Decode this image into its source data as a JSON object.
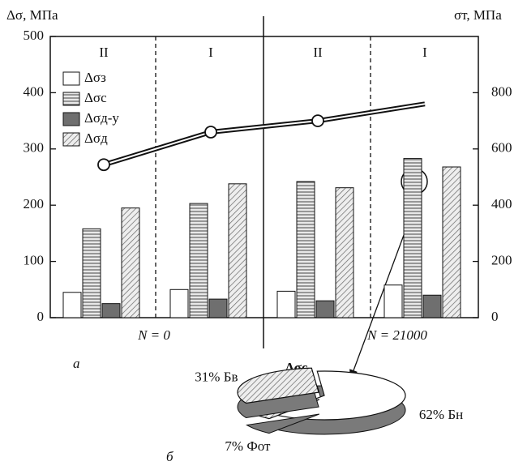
{
  "chart_data": [
    {
      "type": "bar",
      "y_label": "Δσ, МПа",
      "y2_label": "σт, МПа",
      "categories": [
        "II",
        "I",
        "II",
        "I"
      ],
      "group_labels": [
        "N = 0",
        "N = 21000"
      ],
      "panel_label": "а",
      "ylim": [
        0,
        500
      ],
      "yticks": [
        0,
        100,
        200,
        300,
        400,
        500
      ],
      "y2lim": [
        0,
        1000
      ],
      "y2ticks": [
        0,
        200,
        400,
        600,
        800
      ],
      "series": [
        {
          "name": "Δσз",
          "color": "#ffffff",
          "pattern": "none",
          "values": [
            45,
            50,
            47,
            58
          ]
        },
        {
          "name": "Δσс",
          "color": "#dcdcdc",
          "pattern": "horizontal",
          "values": [
            158,
            203,
            242,
            283
          ]
        },
        {
          "name": "Δσд-у",
          "color": "#6f6f6f",
          "pattern": "none",
          "values": [
            25,
            33,
            30,
            40
          ]
        },
        {
          "name": "Δσд",
          "color": "#e6e6e6",
          "pattern": "diagonal",
          "values": [
            195,
            238,
            231,
            268
          ]
        }
      ],
      "line": {
        "type": "line",
        "axis": "y2",
        "color": "#111111",
        "values": [
          544,
          660,
          700,
          760
        ],
        "markers": [
          true,
          true,
          true,
          false
        ]
      }
    },
    {
      "type": "pie",
      "title": "Δσс",
      "panel_label": "б",
      "categories": [
        "Бн",
        "Фот",
        "Бв"
      ],
      "values": [
        62,
        7,
        31
      ],
      "value_labels": [
        "62%",
        "7%",
        "31%"
      ],
      "colors": [
        "#ffffff",
        "#e6e6e6",
        "#8a8a8a"
      ],
      "patterns": [
        "none",
        "diagonal",
        "diagonal"
      ]
    }
  ]
}
